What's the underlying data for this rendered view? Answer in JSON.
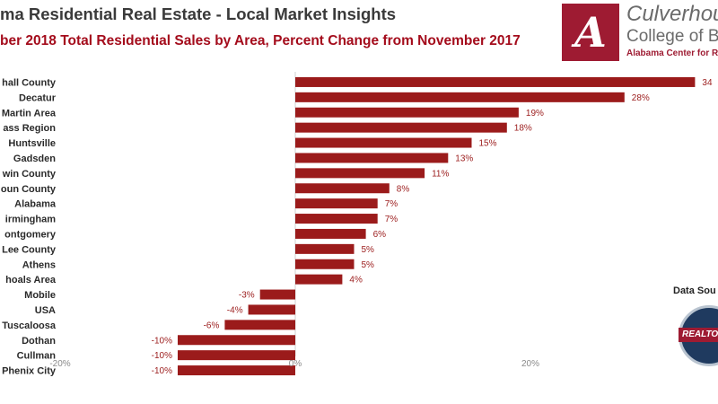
{
  "header": {
    "title": "ma Residential Real Estate - Local Market Insights",
    "subtitle": "ber 2018 Total Residential Sales by Area, Percent Change from November 2017"
  },
  "logo": {
    "mark": "A",
    "line1": "Culverhous",
    "line2": "College of Bu",
    "line3": "Alabama Center for Real"
  },
  "source": {
    "label": "Data Sou",
    "seal_text": "REALTOR"
  },
  "colors": {
    "bar": "#9b1b1b",
    "value_label": "#9b1b1b",
    "accent": "#a40c1c"
  },
  "chart_data": {
    "type": "bar",
    "orientation": "horizontal",
    "categories": [
      "hall County",
      "Decatur",
      "Martin Area",
      "ass Region",
      "Huntsville",
      "Gadsden",
      "win County",
      "oun County",
      "Alabama",
      "irmingham",
      "ontgomery",
      "Lee County",
      "Athens",
      "hoals Area",
      "Mobile",
      "USA",
      "Tuscaloosa",
      "Dothan",
      "Cullman",
      "Phenix City"
    ],
    "values": [
      34,
      28,
      19,
      18,
      15,
      13,
      11,
      8,
      7,
      7,
      6,
      5,
      5,
      4,
      -3,
      -4,
      -6,
      -10,
      -10,
      -10
    ],
    "value_labels": [
      "34",
      "28%",
      "19%",
      "18%",
      "15%",
      "13%",
      "11%",
      "8%",
      "7%",
      "7%",
      "6%",
      "5%",
      "5%",
      "4%",
      "-3%",
      "-4%",
      "-6%",
      "-10%",
      "-10%",
      "-10%"
    ],
    "xlim": [
      -20,
      34
    ],
    "x_ticks": [
      -20,
      0,
      20
    ],
    "x_tick_labels": [
      "-20%",
      "0%",
      "20%"
    ],
    "grid": false,
    "legend": "none"
  }
}
